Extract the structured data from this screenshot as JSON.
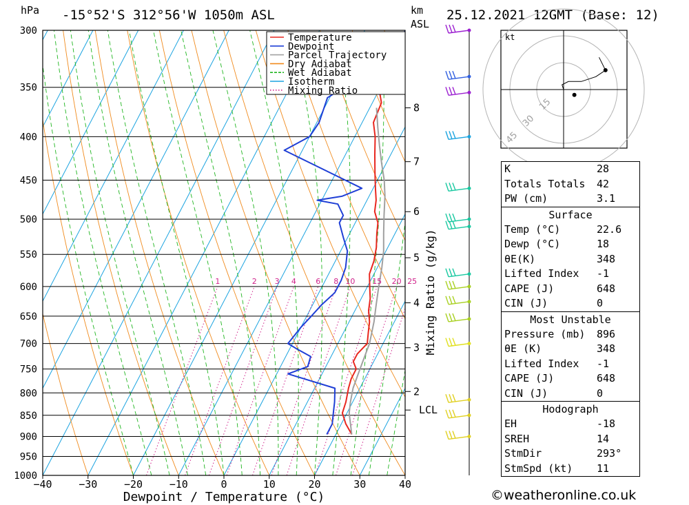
{
  "header": {
    "pressure_unit": "hPa",
    "location": "-15°52'S  312°56'W  1050m  ASL",
    "km_label": "km",
    "asl_label": "ASL",
    "datetime": "25.12.2021  12GMT  (Base: 12)"
  },
  "chart_data": {
    "type": "line",
    "xlabel": "Dewpoint / Temperature (°C)",
    "ylabel": "hPa",
    "xlim": [
      -40,
      40
    ],
    "ylim": [
      1000,
      300
    ],
    "pressure_ticks": [
      300,
      350,
      400,
      450,
      500,
      550,
      600,
      650,
      700,
      750,
      800,
      850,
      900,
      950,
      1000
    ],
    "temp_ticks": [
      -40,
      -30,
      -20,
      -10,
      0,
      10,
      20,
      30,
      40
    ],
    "km_ticks": [
      {
        "label": "8",
        "p": 370
      },
      {
        "label": "7",
        "p": 428
      },
      {
        "label": "6",
        "p": 490
      },
      {
        "label": "5",
        "p": 555
      },
      {
        "label": "4",
        "p": 627
      },
      {
        "label": "3",
        "p": 708
      },
      {
        "label": "2",
        "p": 797
      },
      {
        "label": "LCL",
        "p": 838
      }
    ],
    "mixing_ratio_label": "Mixing Ratio (g/kg)",
    "mixing_ratio_values": [
      "1",
      "2",
      "3",
      "4",
      "6",
      "8",
      "10",
      "15",
      "20",
      "25"
    ],
    "legend": [
      {
        "name": "Temperature",
        "color": "#e8261e",
        "style": "solid"
      },
      {
        "name": "Dewpoint",
        "color": "#1f3fd6",
        "style": "solid"
      },
      {
        "name": "Parcel Trajectory",
        "color": "#a0a0a0",
        "style": "solid"
      },
      {
        "name": "Dry Adiabat",
        "color": "#f08a1c",
        "style": "solid"
      },
      {
        "name": "Wet Adiabat",
        "color": "#1fb51f",
        "style": "dashed"
      },
      {
        "name": "Isotherm",
        "color": "#1aa3e0",
        "style": "solid"
      },
      {
        "name": "Mixing Ratio",
        "color": "#d0218a",
        "style": "dotted"
      }
    ],
    "series": [
      {
        "name": "Temperature",
        "color": "#e8261e",
        "points": [
          [
            23.5,
            895
          ],
          [
            21.0,
            870
          ],
          [
            19.0,
            845
          ],
          [
            18.5,
            820
          ],
          [
            17.5,
            790
          ],
          [
            17.0,
            770
          ],
          [
            17.0,
            750
          ],
          [
            15.5,
            735
          ],
          [
            15.5,
            720
          ],
          [
            16.5,
            700
          ],
          [
            15.5,
            680
          ],
          [
            14.5,
            660
          ],
          [
            13.0,
            640
          ],
          [
            12.0,
            620
          ],
          [
            10.5,
            600
          ],
          [
            9.0,
            580
          ],
          [
            8.5,
            560
          ],
          [
            7.5,
            540
          ],
          [
            6.0,
            520
          ],
          [
            5.0,
            505
          ],
          [
            3.0,
            490
          ],
          [
            2.0,
            475
          ],
          [
            0.5,
            460
          ],
          [
            -1.5,
            440
          ],
          [
            -3.5,
            420
          ],
          [
            -5.5,
            400
          ],
          [
            -7.5,
            385
          ],
          [
            -8.0,
            365
          ],
          [
            -12.0,
            340
          ],
          [
            -15.0,
            310
          ]
        ]
      },
      {
        "name": "Dewpoint",
        "color": "#1f3fd6",
        "points": [
          [
            18.0,
            895
          ],
          [
            18.0,
            870
          ],
          [
            17.0,
            845
          ],
          [
            16.0,
            820
          ],
          [
            14.5,
            790
          ],
          [
            2.5,
            760
          ],
          [
            6.0,
            745
          ],
          [
            5.5,
            725
          ],
          [
            1.5,
            710
          ],
          [
            -1.0,
            700
          ],
          [
            -0.5,
            685
          ],
          [
            0.0,
            670
          ],
          [
            1.0,
            650
          ],
          [
            2.0,
            630
          ],
          [
            3.5,
            610
          ],
          [
            3.5,
            590
          ],
          [
            3.0,
            570
          ],
          [
            1.5,
            545
          ],
          [
            -1.0,
            525
          ],
          [
            -3.5,
            505
          ],
          [
            -3.5,
            495
          ],
          [
            -6.0,
            480
          ],
          [
            -11.0,
            475
          ],
          [
            -6.0,
            470
          ],
          [
            -2.5,
            460
          ],
          [
            -24.0,
            415
          ],
          [
            -20.0,
            400
          ],
          [
            -19.5,
            385
          ],
          [
            -20.5,
            360
          ],
          [
            -18.0,
            350
          ],
          [
            -12.0,
            320
          ],
          [
            -11.0,
            300
          ]
        ]
      },
      {
        "name": "Parcel Trajectory",
        "color": "#a0a0a0",
        "points": [
          [
            23.5,
            895
          ],
          [
            20.5,
            845
          ],
          [
            19.5,
            820
          ],
          [
            18.5,
            790
          ],
          [
            18.0,
            760
          ],
          [
            17.5,
            730
          ],
          [
            17.0,
            700
          ],
          [
            15.5,
            660
          ],
          [
            14.0,
            630
          ],
          [
            12.5,
            600
          ],
          [
            11.0,
            570
          ],
          [
            9.5,
            545
          ],
          [
            7.5,
            520
          ],
          [
            5.5,
            495
          ],
          [
            3.5,
            470
          ],
          [
            1.5,
            450
          ],
          [
            -1.0,
            430
          ],
          [
            -3.5,
            410
          ],
          [
            -6.0,
            390
          ],
          [
            -8.5,
            370
          ]
        ]
      }
    ],
    "wind_barbs": [
      {
        "p": 300,
        "color": "#9b1fd0"
      },
      {
        "p": 340,
        "color": "#2f5fe0"
      },
      {
        "p": 355,
        "color": "#9b1fd0"
      },
      {
        "p": 400,
        "color": "#1aa3e0"
      },
      {
        "p": 460,
        "color": "#18c8a0"
      },
      {
        "p": 500,
        "color": "#18c8a0"
      },
      {
        "p": 510,
        "color": "#18c8a0"
      },
      {
        "p": 580,
        "color": "#18c8a0"
      },
      {
        "p": 600,
        "color": "#a8d020"
      },
      {
        "p": 625,
        "color": "#a8d020"
      },
      {
        "p": 655,
        "color": "#a8d020"
      },
      {
        "p": 700,
        "color": "#e0e020"
      },
      {
        "p": 815,
        "color": "#e0d020"
      },
      {
        "p": 850,
        "color": "#e0d020"
      },
      {
        "p": 900,
        "color": "#e0d020"
      }
    ],
    "hodograph": {
      "unit_label": "kt",
      "ring_labels": [
        "15",
        "30",
        "45"
      ],
      "trace": [
        [
          0,
          0
        ],
        [
          -1,
          3
        ],
        [
          3,
          5
        ],
        [
          11,
          5
        ],
        [
          20,
          8
        ],
        [
          26,
          12
        ],
        [
          22,
          20
        ]
      ],
      "storm_motion": [
        6,
        -3
      ]
    }
  },
  "stats": {
    "indices": [
      {
        "label": "K",
        "value": "28"
      },
      {
        "label": "Totals Totals",
        "value": "42"
      },
      {
        "label": "PW (cm)",
        "value": "3.1"
      }
    ],
    "surface": {
      "title": "Surface",
      "rows": [
        {
          "label": "Temp (°C)",
          "value": "22.6"
        },
        {
          "label": "Dewp (°C)",
          "value": "18"
        },
        {
          "label": "θE(K)",
          "value": "348"
        },
        {
          "label": "Lifted Index",
          "value": "-1"
        },
        {
          "label": "CAPE (J)",
          "value": "648"
        },
        {
          "label": "CIN (J)",
          "value": "0"
        }
      ]
    },
    "most_unstable": {
      "title": "Most Unstable",
      "rows": [
        {
          "label": "Pressure (mb)",
          "value": "896"
        },
        {
          "label": "θE (K)",
          "value": "348"
        },
        {
          "label": "Lifted Index",
          "value": "-1"
        },
        {
          "label": "CAPE (J)",
          "value": "648"
        },
        {
          "label": "CIN (J)",
          "value": "0"
        }
      ]
    },
    "hodograph": {
      "title": "Hodograph",
      "rows": [
        {
          "label": "EH",
          "value": "-18"
        },
        {
          "label": "SREH",
          "value": "14"
        },
        {
          "label": "StmDir",
          "value": "293°"
        },
        {
          "label": "StmSpd (kt)",
          "value": "11"
        }
      ]
    }
  },
  "footer": {
    "copyright": "©weatheronline.co.uk"
  }
}
